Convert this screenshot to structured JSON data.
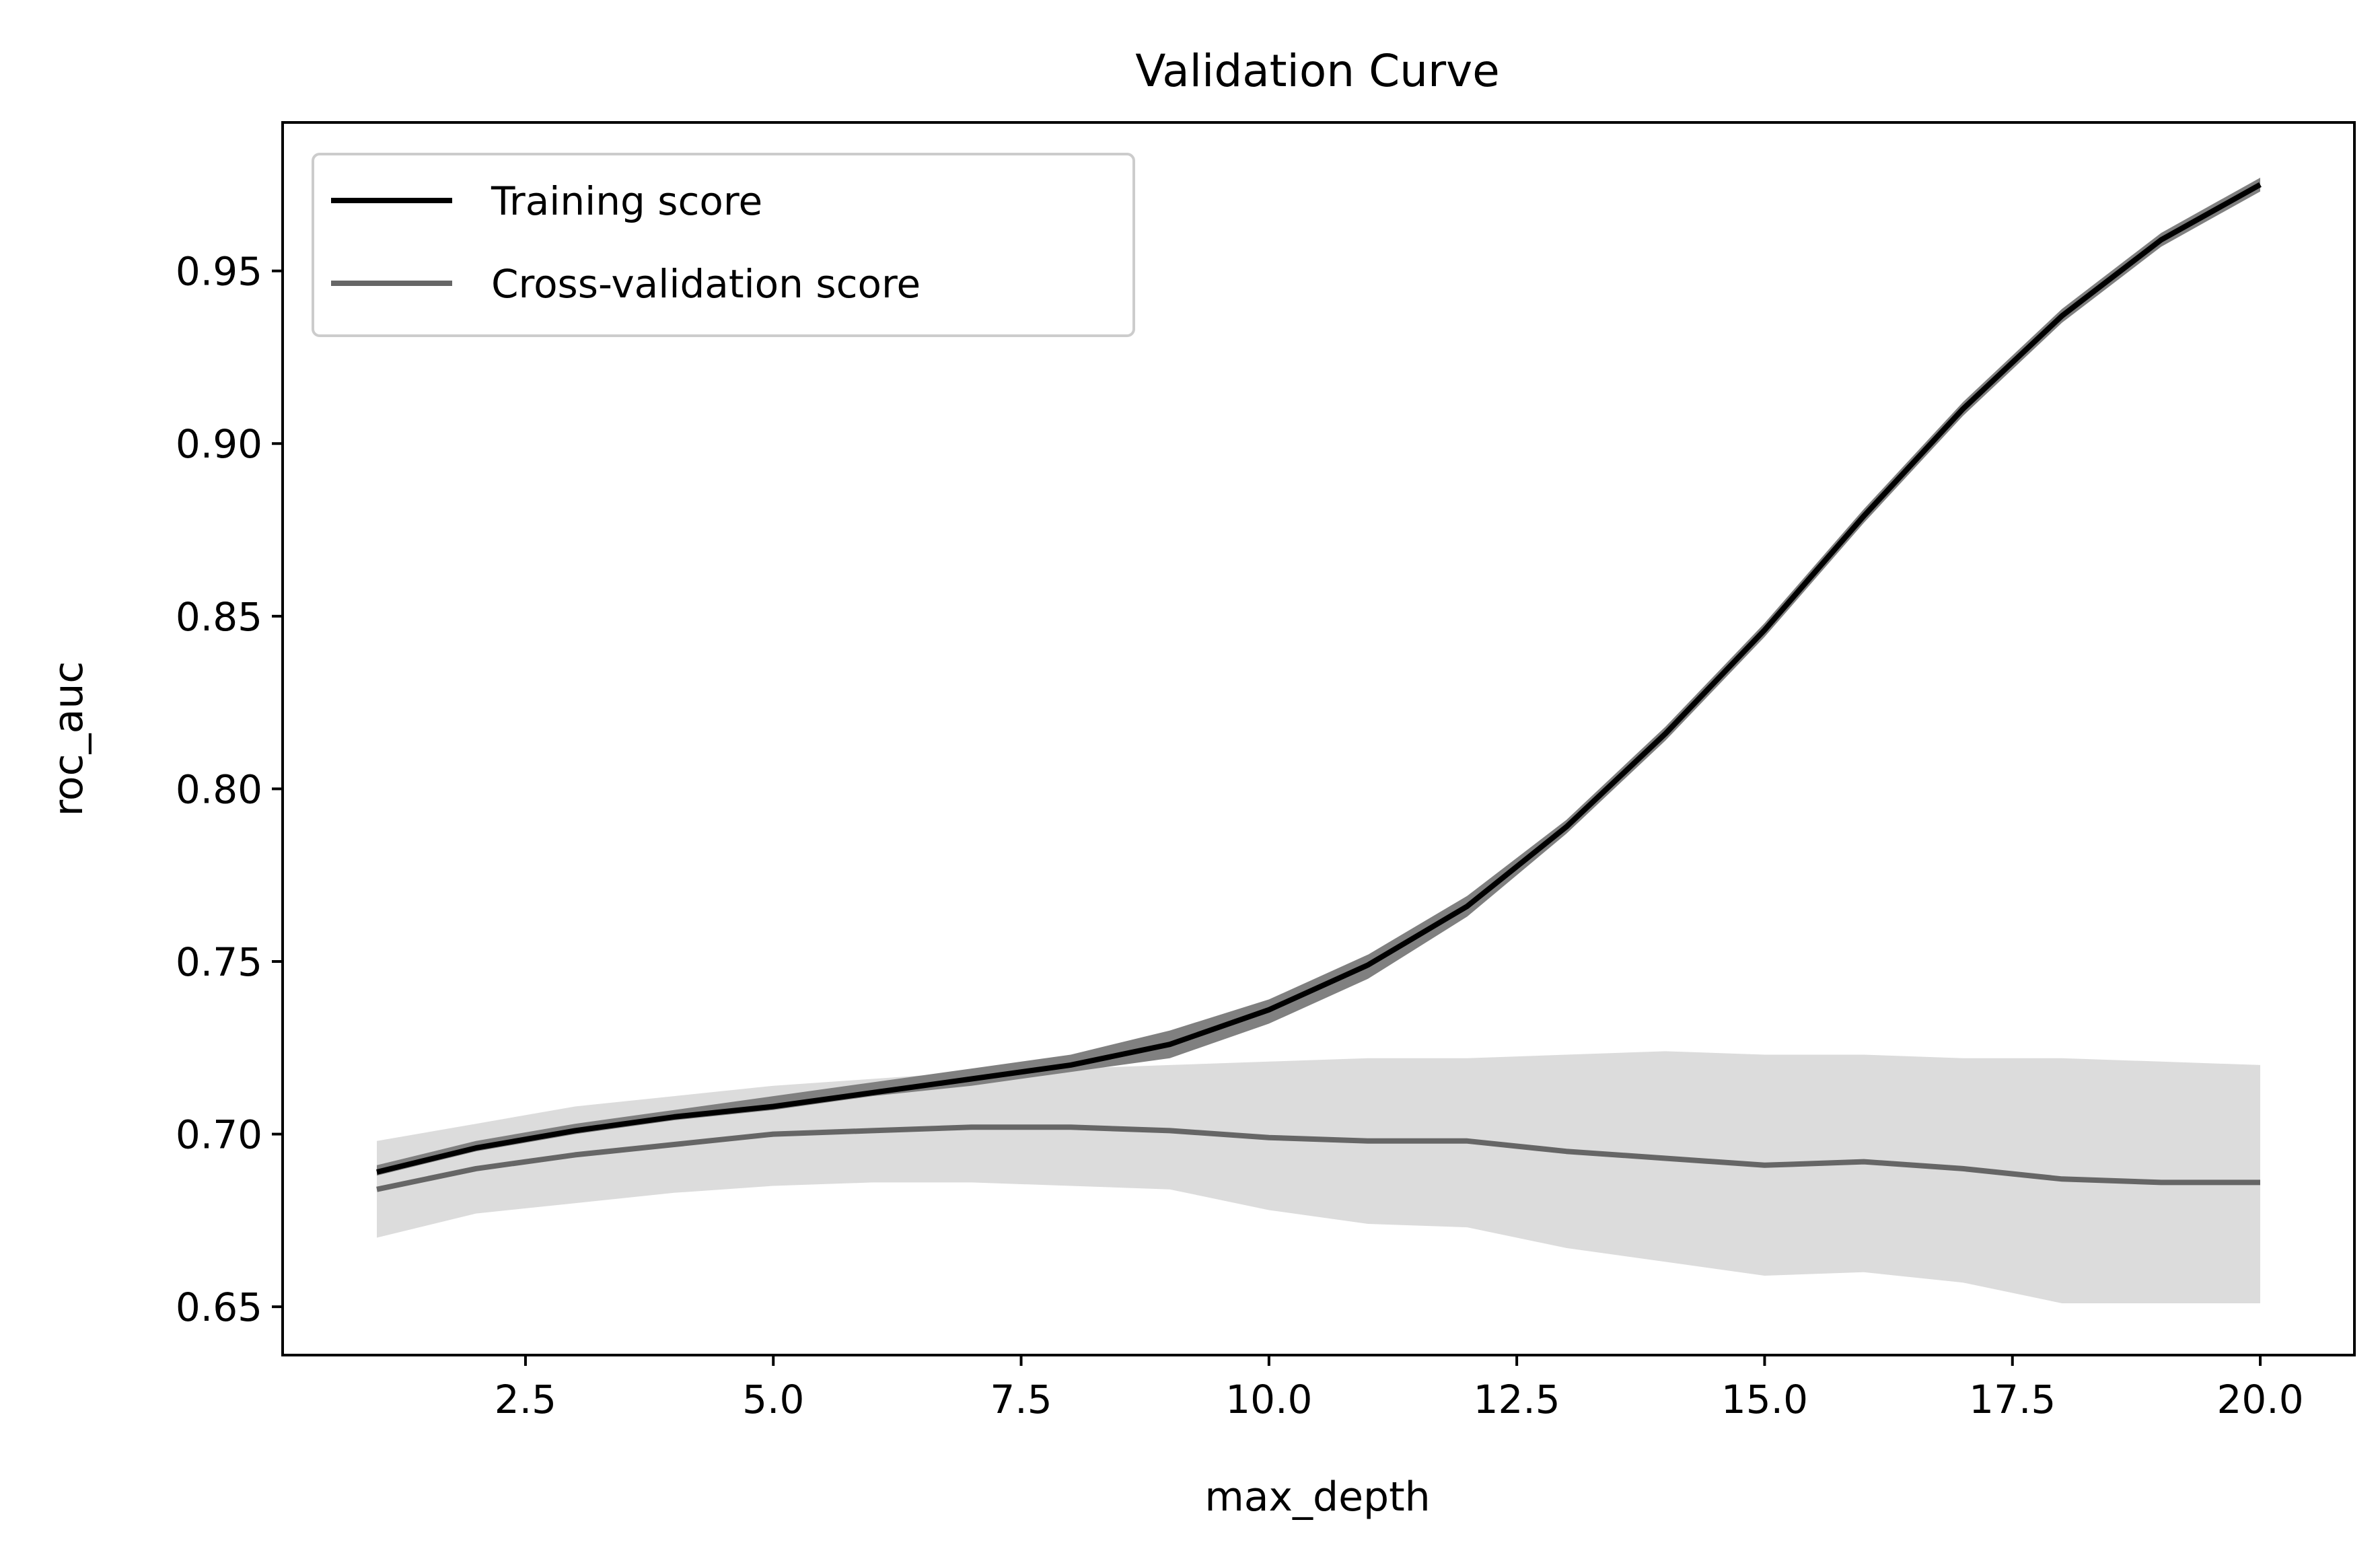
{
  "chart_data": {
    "type": "line",
    "title": "Validation Curve",
    "xlabel": "max_depth",
    "ylabel": "roc_auc",
    "xlim": [
      0.05,
      20.95
    ],
    "ylim": [
      0.636,
      0.993
    ],
    "xticks": [
      "2.5",
      "5.0",
      "7.5",
      "10.0",
      "12.5",
      "15.0",
      "17.5",
      "20.0"
    ],
    "yticks": [
      "0.65",
      "0.70",
      "0.75",
      "0.80",
      "0.85",
      "0.90",
      "0.95"
    ],
    "grid": false,
    "legend_position": "upper left",
    "x": [
      1,
      2,
      3,
      4,
      5,
      6,
      7,
      8,
      9,
      10,
      11,
      12,
      13,
      14,
      15,
      16,
      17,
      18,
      19,
      20
    ],
    "series": [
      {
        "name": "Training score",
        "color": "#000000",
        "band_color": "#808080",
        "values": [
          0.689,
          0.696,
          0.701,
          0.705,
          0.708,
          0.712,
          0.716,
          0.72,
          0.726,
          0.736,
          0.749,
          0.766,
          0.789,
          0.816,
          0.846,
          0.879,
          0.91,
          0.937,
          0.959,
          0.975
        ],
        "lower": [
          0.688,
          0.695,
          0.7,
          0.704,
          0.707,
          0.711,
          0.714,
          0.718,
          0.722,
          0.732,
          0.745,
          0.763,
          0.787,
          0.814,
          0.844,
          0.877,
          0.908,
          0.935,
          0.957,
          0.973
        ],
        "upper": [
          0.691,
          0.698,
          0.703,
          0.707,
          0.711,
          0.715,
          0.719,
          0.723,
          0.73,
          0.739,
          0.752,
          0.769,
          0.791,
          0.818,
          0.848,
          0.881,
          0.912,
          0.939,
          0.961,
          0.977
        ]
      },
      {
        "name": "Cross-validation score",
        "color": "#666666",
        "band_color": "#dcdcdc",
        "values": [
          0.684,
          0.69,
          0.694,
          0.697,
          0.7,
          0.701,
          0.702,
          0.702,
          0.701,
          0.699,
          0.698,
          0.698,
          0.695,
          0.693,
          0.691,
          0.692,
          0.69,
          0.687,
          0.686,
          0.686
        ],
        "lower": [
          0.67,
          0.677,
          0.68,
          0.683,
          0.685,
          0.686,
          0.686,
          0.685,
          0.684,
          0.678,
          0.674,
          0.673,
          0.667,
          0.663,
          0.659,
          0.66,
          0.657,
          0.651,
          0.651,
          0.651
        ],
        "upper": [
          0.698,
          0.703,
          0.708,
          0.711,
          0.714,
          0.716,
          0.718,
          0.719,
          0.72,
          0.721,
          0.722,
          0.722,
          0.723,
          0.724,
          0.723,
          0.723,
          0.722,
          0.722,
          0.721,
          0.72
        ]
      }
    ]
  }
}
